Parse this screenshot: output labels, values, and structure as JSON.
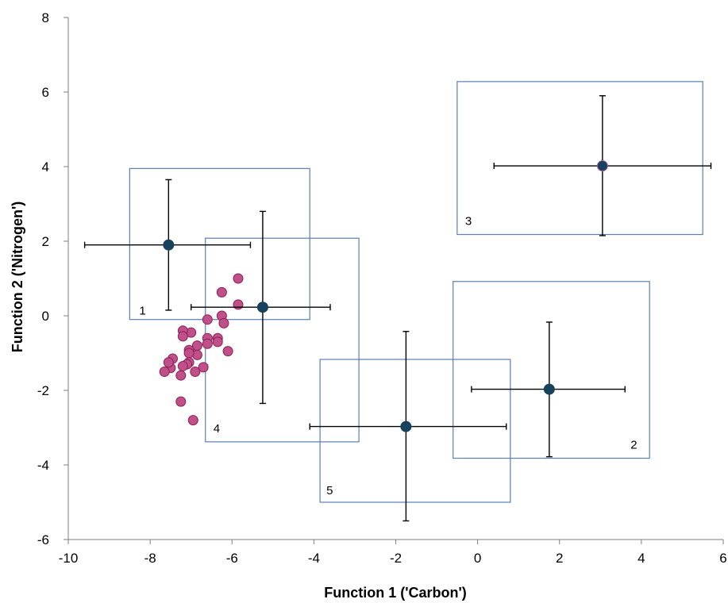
{
  "chart_data": {
    "type": "scatter",
    "title": "",
    "xlabel": "Function 1 ('Carbon')",
    "ylabel": "Function 2 ('Nitrogen')",
    "xlim": [
      -10,
      6
    ],
    "ylim": [
      -6,
      8
    ],
    "xticks": [
      -10,
      -8,
      -6,
      -4,
      -2,
      0,
      2,
      4,
      6
    ],
    "yticks": [
      -6,
      -4,
      -2,
      0,
      2,
      4,
      6,
      8
    ],
    "x_tick_labels": [
      "-10",
      "-8",
      "-6",
      "-4",
      "-2",
      "0",
      "2",
      "4",
      "6"
    ],
    "y_tick_labels": [
      "-6",
      "-4",
      "-2",
      "0",
      "2",
      "4",
      "6",
      "8"
    ],
    "grid": false,
    "colors": {
      "samples_fill": "#c0508a",
      "samples_stroke": "#8b1f55",
      "centroid_fill": "#17425e",
      "box_stroke": "#5a7fb5",
      "errorbar": "#000000"
    },
    "groups": [
      {
        "label": "1",
        "centroid": [
          -7.55,
          1.9
        ],
        "x_range": [
          -9.6,
          -5.55
        ],
        "y_range": [
          0.15,
          3.65
        ],
        "box_x": [
          -8.5,
          -4.1
        ],
        "box_y": [
          -0.1,
          3.95
        ]
      },
      {
        "label": "2",
        "centroid": [
          1.75,
          -1.97
        ],
        "x_range": [
          -0.15,
          3.6
        ],
        "y_range": [
          -3.78,
          -0.17
        ],
        "box_x": [
          -0.6,
          4.2
        ],
        "box_y": [
          -3.82,
          0.92
        ]
      },
      {
        "label": "3",
        "centroid": [
          3.05,
          4.02
        ],
        "x_range": [
          0.4,
          5.7
        ],
        "y_range": [
          2.15,
          5.9
        ],
        "box_x": [
          -0.5,
          5.5
        ],
        "box_y": [
          2.18,
          6.28
        ]
      },
      {
        "label": "4",
        "centroid": [
          -5.25,
          0.23
        ],
        "x_range": [
          -7.0,
          -3.6
        ],
        "y_range": [
          -2.35,
          2.8
        ],
        "box_x": [
          -6.65,
          -2.9
        ],
        "box_y": [
          -3.38,
          2.08
        ]
      },
      {
        "label": "5",
        "centroid": [
          -1.75,
          -2.97
        ],
        "x_range": [
          -4.1,
          0.7
        ],
        "y_range": [
          -5.5,
          -0.42
        ],
        "box_x": [
          -3.85,
          0.8
        ],
        "box_y": [
          -5.0,
          -1.17
        ]
      }
    ],
    "samples": [
      [
        -5.85,
        1.0
      ],
      [
        -5.85,
        0.3
      ],
      [
        -6.25,
        0.63
      ],
      [
        -6.25,
        0.0
      ],
      [
        -6.2,
        -0.2
      ],
      [
        -6.1,
        -0.95
      ],
      [
        -6.35,
        -0.6
      ],
      [
        -6.35,
        -0.7
      ],
      [
        -6.6,
        -0.1
      ],
      [
        -6.6,
        -0.6
      ],
      [
        -6.6,
        -0.75
      ],
      [
        -6.7,
        -1.38
      ],
      [
        -6.85,
        -0.8
      ],
      [
        -6.85,
        -1.05
      ],
      [
        -6.9,
        -1.5
      ],
      [
        -6.95,
        -2.8
      ],
      [
        -7.0,
        -0.45
      ],
      [
        -7.05,
        -0.92
      ],
      [
        -7.05,
        -1.0
      ],
      [
        -7.05,
        -1.25
      ],
      [
        -7.1,
        -1.3
      ],
      [
        -7.2,
        -0.4
      ],
      [
        -7.2,
        -0.55
      ],
      [
        -7.2,
        -1.35
      ],
      [
        -7.25,
        -1.6
      ],
      [
        -7.25,
        -2.3
      ],
      [
        -7.45,
        -1.15
      ],
      [
        -7.5,
        -1.4
      ],
      [
        -7.55,
        -1.25
      ],
      [
        -7.65,
        -1.5
      ]
    ]
  }
}
